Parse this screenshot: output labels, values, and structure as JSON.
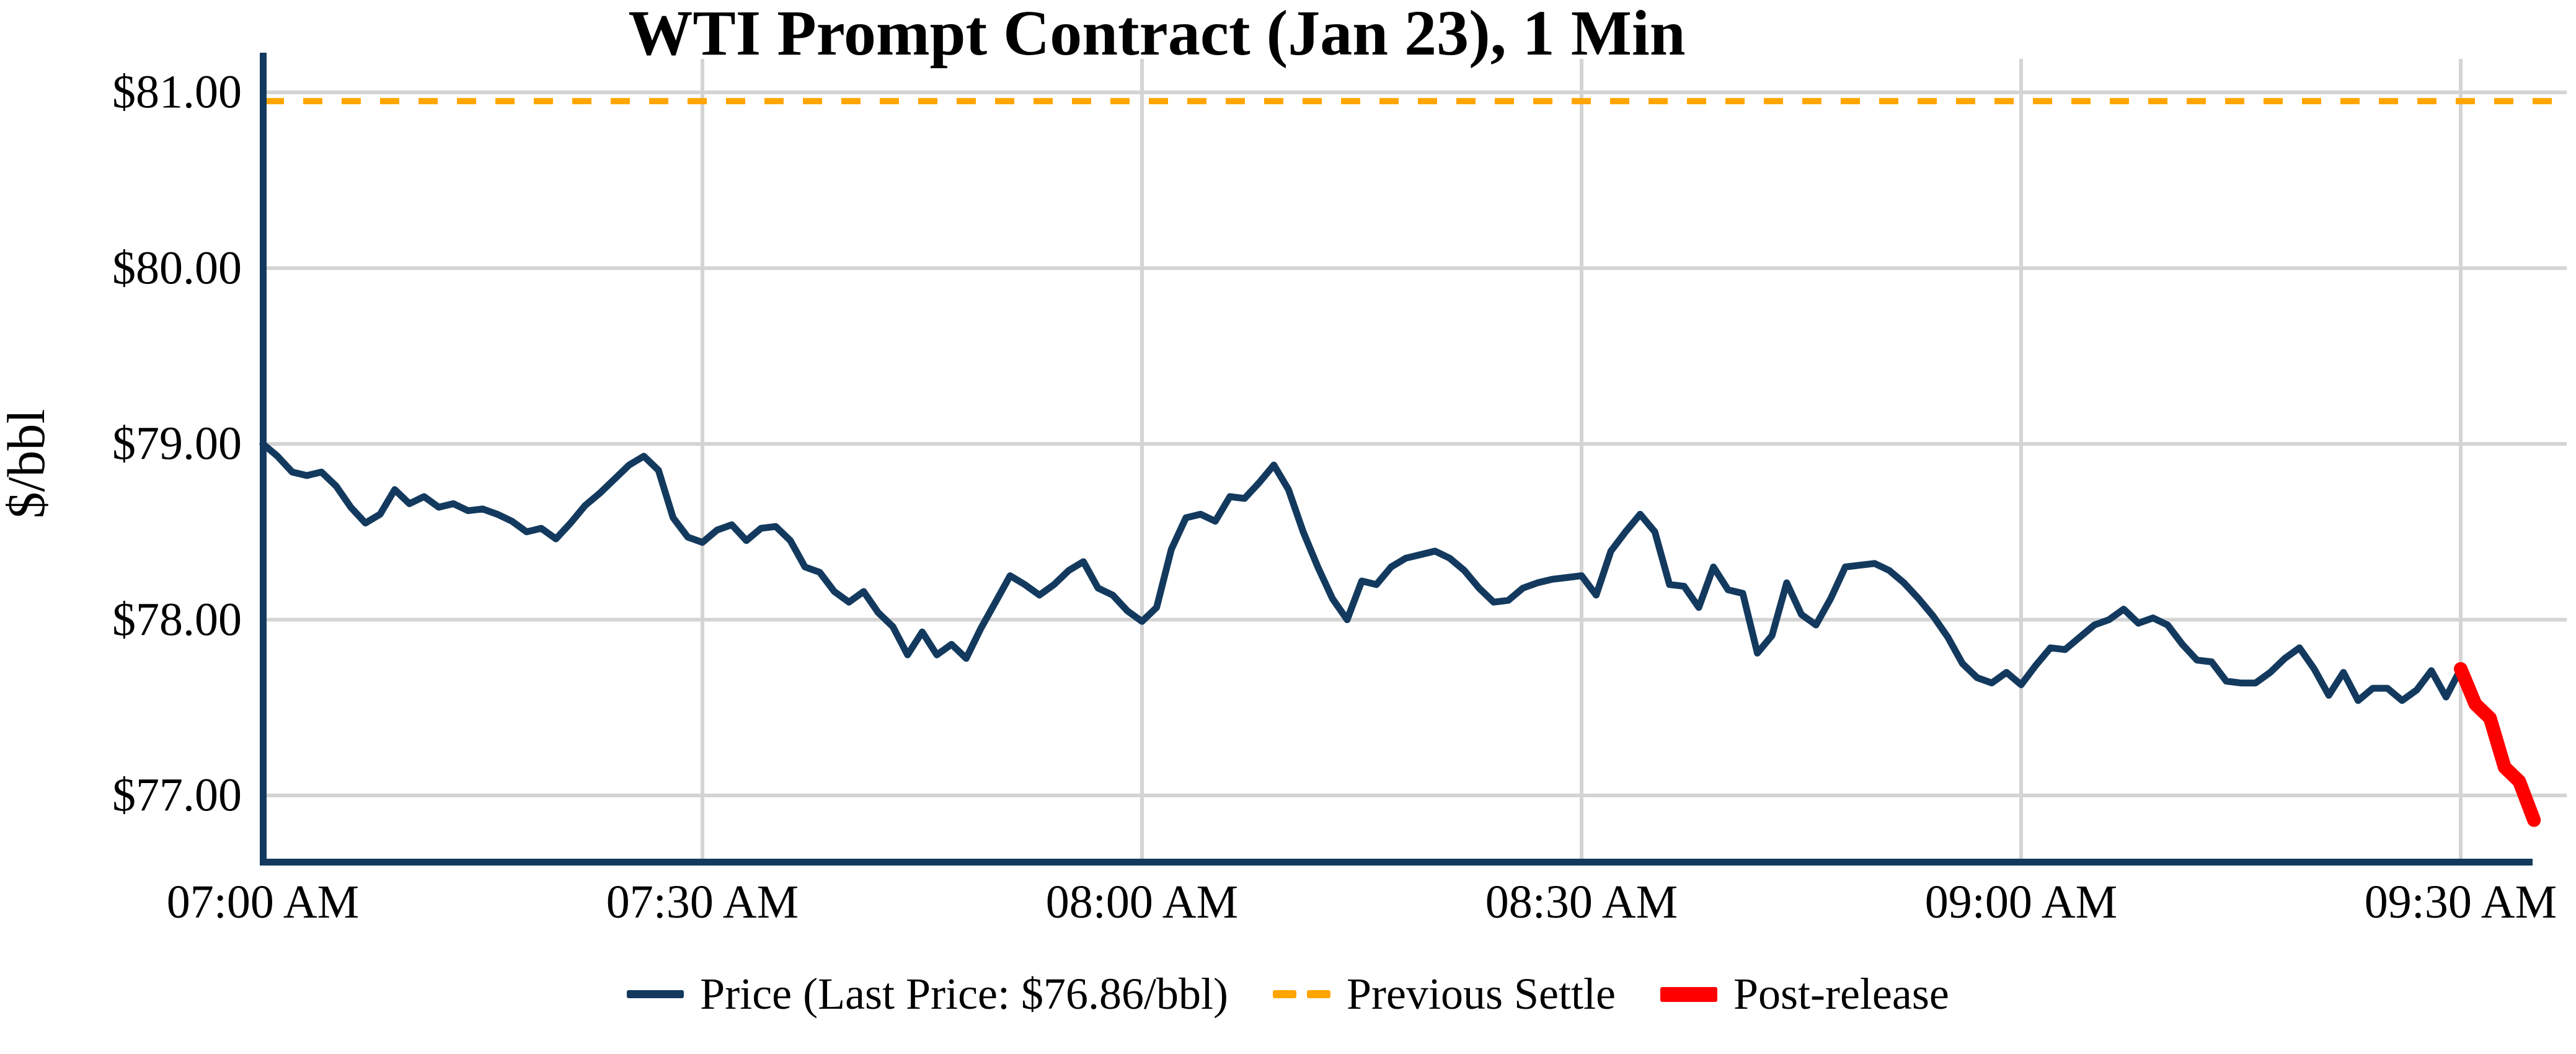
{
  "chart_data": {
    "type": "line",
    "title": "WTI Prompt Contract (Jan 23), 1 Min",
    "ylabel": "$/bbl",
    "xlabel": "",
    "grid": true,
    "x_axis": {
      "tick_minutes": [
        0,
        30,
        60,
        90,
        120,
        150
      ],
      "tick_labels": [
        "07:00 AM",
        "07:30 AM",
        "08:00 AM",
        "08:30 AM",
        "09:00 AM",
        "09:30 AM"
      ],
      "xlim_minutes": [
        0,
        157.2
      ],
      "start_time": "07:00 AM",
      "end_time": "09:35 AM"
    },
    "y_axis": {
      "tick_values": [
        77,
        78,
        79,
        80,
        81
      ],
      "tick_labels": [
        "$77.00",
        "$78.00",
        "$79.00",
        "$80.00",
        "$81.00"
      ],
      "ylim": [
        76.62,
        81.26
      ]
    },
    "previous_settle_value": 80.95,
    "last_price": 76.86,
    "colors": {
      "price": "#133A5E",
      "previous_settle": "#FFA500",
      "post_release": "#FF0000",
      "grid": "#D4D4D4",
      "axis": "#133A5E",
      "text": "#000000",
      "background": "#FFFFFF"
    },
    "legend": {
      "position": "bottom-center",
      "entries": [
        {
          "label": "Price (Last Price: $76.86/bbl)",
          "swatch": "line-navy"
        },
        {
          "label": "Previous Settle",
          "swatch": "dash-orange"
        },
        {
          "label": "Post-release",
          "swatch": "line-red-thick"
        }
      ]
    },
    "series": [
      {
        "name": "Price (Last Price: $76.86/bbl)",
        "kind": "line",
        "color_key": "price",
        "stroke_width": 11,
        "t0_minutes": 0,
        "dt_minutes": 1,
        "values": [
          79.0,
          78.93,
          78.84,
          78.82,
          78.84,
          78.76,
          78.64,
          78.55,
          78.6,
          78.74,
          78.66,
          78.7,
          78.64,
          78.66,
          78.62,
          78.63,
          78.6,
          78.56,
          78.5,
          78.52,
          78.46,
          78.55,
          78.65,
          78.72,
          78.8,
          78.88,
          78.93,
          78.85,
          78.58,
          78.47,
          78.44,
          78.51,
          78.54,
          78.45,
          78.52,
          78.53,
          78.45,
          78.3,
          78.27,
          78.16,
          78.1,
          78.16,
          78.04,
          77.96,
          77.8,
          77.93,
          77.8,
          77.86,
          77.78,
          77.95,
          78.1,
          78.25,
          78.2,
          78.14,
          78.2,
          78.28,
          78.33,
          78.18,
          78.14,
          78.05,
          77.99,
          78.07,
          78.4,
          78.58,
          78.6,
          78.56,
          78.7,
          78.69,
          78.78,
          78.88,
          78.74,
          78.5,
          78.3,
          78.12,
          78.0,
          78.22,
          78.2,
          78.3,
          78.35,
          78.37,
          78.39,
          78.35,
          78.28,
          78.18,
          78.1,
          78.11,
          78.18,
          78.21,
          78.23,
          78.24,
          78.25,
          78.14,
          78.39,
          78.5,
          78.6,
          78.5,
          78.2,
          78.19,
          78.07,
          78.3,
          78.17,
          78.15,
          77.81,
          77.91,
          78.21,
          78.03,
          77.97,
          78.12,
          78.3,
          78.31,
          78.32,
          78.28,
          78.21,
          78.12,
          78.02,
          77.9,
          77.75,
          77.67,
          77.64,
          77.7,
          77.63,
          77.74,
          77.84,
          77.83,
          77.9,
          77.97,
          78.0,
          78.06,
          77.98,
          78.01,
          77.97,
          77.86,
          77.77,
          77.76,
          77.65,
          77.64,
          77.64,
          77.7,
          77.78,
          77.84,
          77.72,
          77.57,
          77.7,
          77.54,
          77.61,
          77.61,
          77.54,
          77.6,
          77.71,
          77.56,
          77.72
        ]
      },
      {
        "name": "Previous Settle",
        "kind": "hline",
        "color_key": "previous_settle",
        "stroke_width": 10,
        "dash": [
          31,
          31
        ],
        "value": 80.95
      },
      {
        "name": "Post-release",
        "kind": "line",
        "color_key": "post_release",
        "stroke_width": 22,
        "t0_minutes": 150,
        "dt_minutes": 1,
        "values": [
          77.72,
          77.52,
          77.44,
          77.16,
          77.08,
          76.86
        ]
      }
    ]
  }
}
